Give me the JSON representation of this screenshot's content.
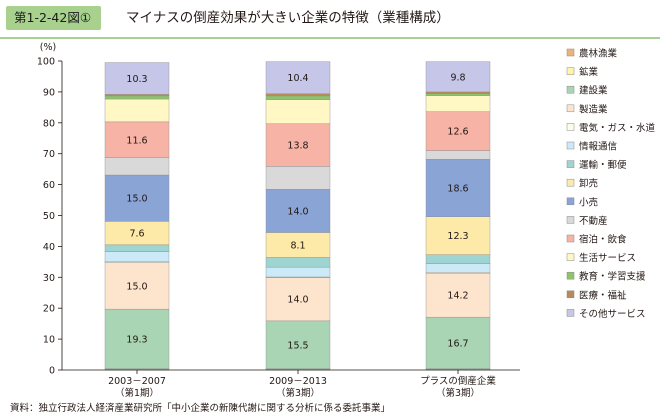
{
  "header": {
    "figure_number": "第1-2-42図①",
    "title": "マイナスの倒産効果が大きい企業の特徴（業種構成）"
  },
  "source": "資料：独立行政法人経済産業研究所「中小企業の新陳代謝に関する分析に係る委託事業」",
  "chart_data": {
    "type": "bar",
    "stacked": true,
    "ylabel": "(%)",
    "ylim": [
      0,
      100
    ],
    "yticks": [
      0,
      10,
      20,
      30,
      40,
      50,
      60,
      70,
      80,
      90,
      100
    ],
    "grid": false,
    "legend_position": "right",
    "categories": [
      [
        "2003－2007",
        "（第1期）"
      ],
      [
        "2009－2013",
        "（第3期）"
      ],
      [
        "プラスの倒産企業",
        "（第3期）"
      ]
    ],
    "series": [
      {
        "name": "農林漁業",
        "color": "#f2b077",
        "values": [
          0.2,
          0.2,
          0.2
        ],
        "labels": [
          "",
          "",
          ""
        ]
      },
      {
        "name": "鉱業",
        "color": "#fff4a8",
        "values": [
          0.2,
          0.2,
          0.2
        ],
        "labels": [
          "",
          "",
          ""
        ]
      },
      {
        "name": "建設業",
        "color": "#a9d5b4",
        "values": [
          19.3,
          15.5,
          16.7
        ],
        "labels": [
          "19.3",
          "15.5",
          "16.7"
        ]
      },
      {
        "name": "製造業",
        "color": "#fde4cd",
        "values": [
          15.0,
          14.0,
          14.2
        ],
        "labels": [
          "15.0",
          "14.0",
          "14.2"
        ]
      },
      {
        "name": "電気・ガス・水道",
        "color": "#fffde7",
        "values": [
          0.3,
          0.2,
          0.3
        ],
        "labels": [
          "",
          "",
          ""
        ]
      },
      {
        "name": "情報通信",
        "color": "#cce9f7",
        "values": [
          3.3,
          3.2,
          2.8
        ],
        "labels": [
          "",
          "",
          ""
        ]
      },
      {
        "name": "運輸・郵便",
        "color": "#9ed5d2",
        "values": [
          2.2,
          3.1,
          2.9
        ],
        "labels": [
          "",
          "",
          ""
        ]
      },
      {
        "name": "卸売",
        "color": "#fde9a8",
        "values": [
          7.6,
          8.1,
          12.3
        ],
        "labels": [
          "7.6",
          "8.1",
          "12.3"
        ]
      },
      {
        "name": "小売",
        "color": "#8aa4d6",
        "values": [
          15.0,
          14.0,
          18.6
        ],
        "labels": [
          "15.0",
          "14.0",
          "18.6"
        ]
      },
      {
        "name": "不動産",
        "color": "#d9d9d9",
        "values": [
          5.6,
          7.4,
          2.8
        ],
        "labels": [
          "",
          "",
          ""
        ]
      },
      {
        "name": "宿泊・飲食",
        "color": "#f6b3a6",
        "values": [
          11.6,
          13.8,
          12.6
        ],
        "labels": [
          "11.6",
          "13.8",
          "12.6"
        ]
      },
      {
        "name": "生活サービス",
        "color": "#fff8c4",
        "values": [
          7.4,
          7.8,
          5.2
        ],
        "labels": [
          "",
          "",
          ""
        ]
      },
      {
        "name": "教育・学習支援",
        "color": "#8fc56a",
        "values": [
          1.0,
          1.2,
          0.6
        ],
        "labels": [
          "",
          "",
          ""
        ]
      },
      {
        "name": "医療・福祉",
        "color": "#b88a5a",
        "values": [
          0.5,
          0.7,
          0.6
        ],
        "labels": [
          "",
          "",
          ""
        ]
      },
      {
        "name": "その他サービス",
        "color": "#c5c6e8",
        "values": [
          10.3,
          10.4,
          9.8
        ],
        "labels": [
          "10.3",
          "10.4",
          "9.8"
        ]
      }
    ]
  }
}
